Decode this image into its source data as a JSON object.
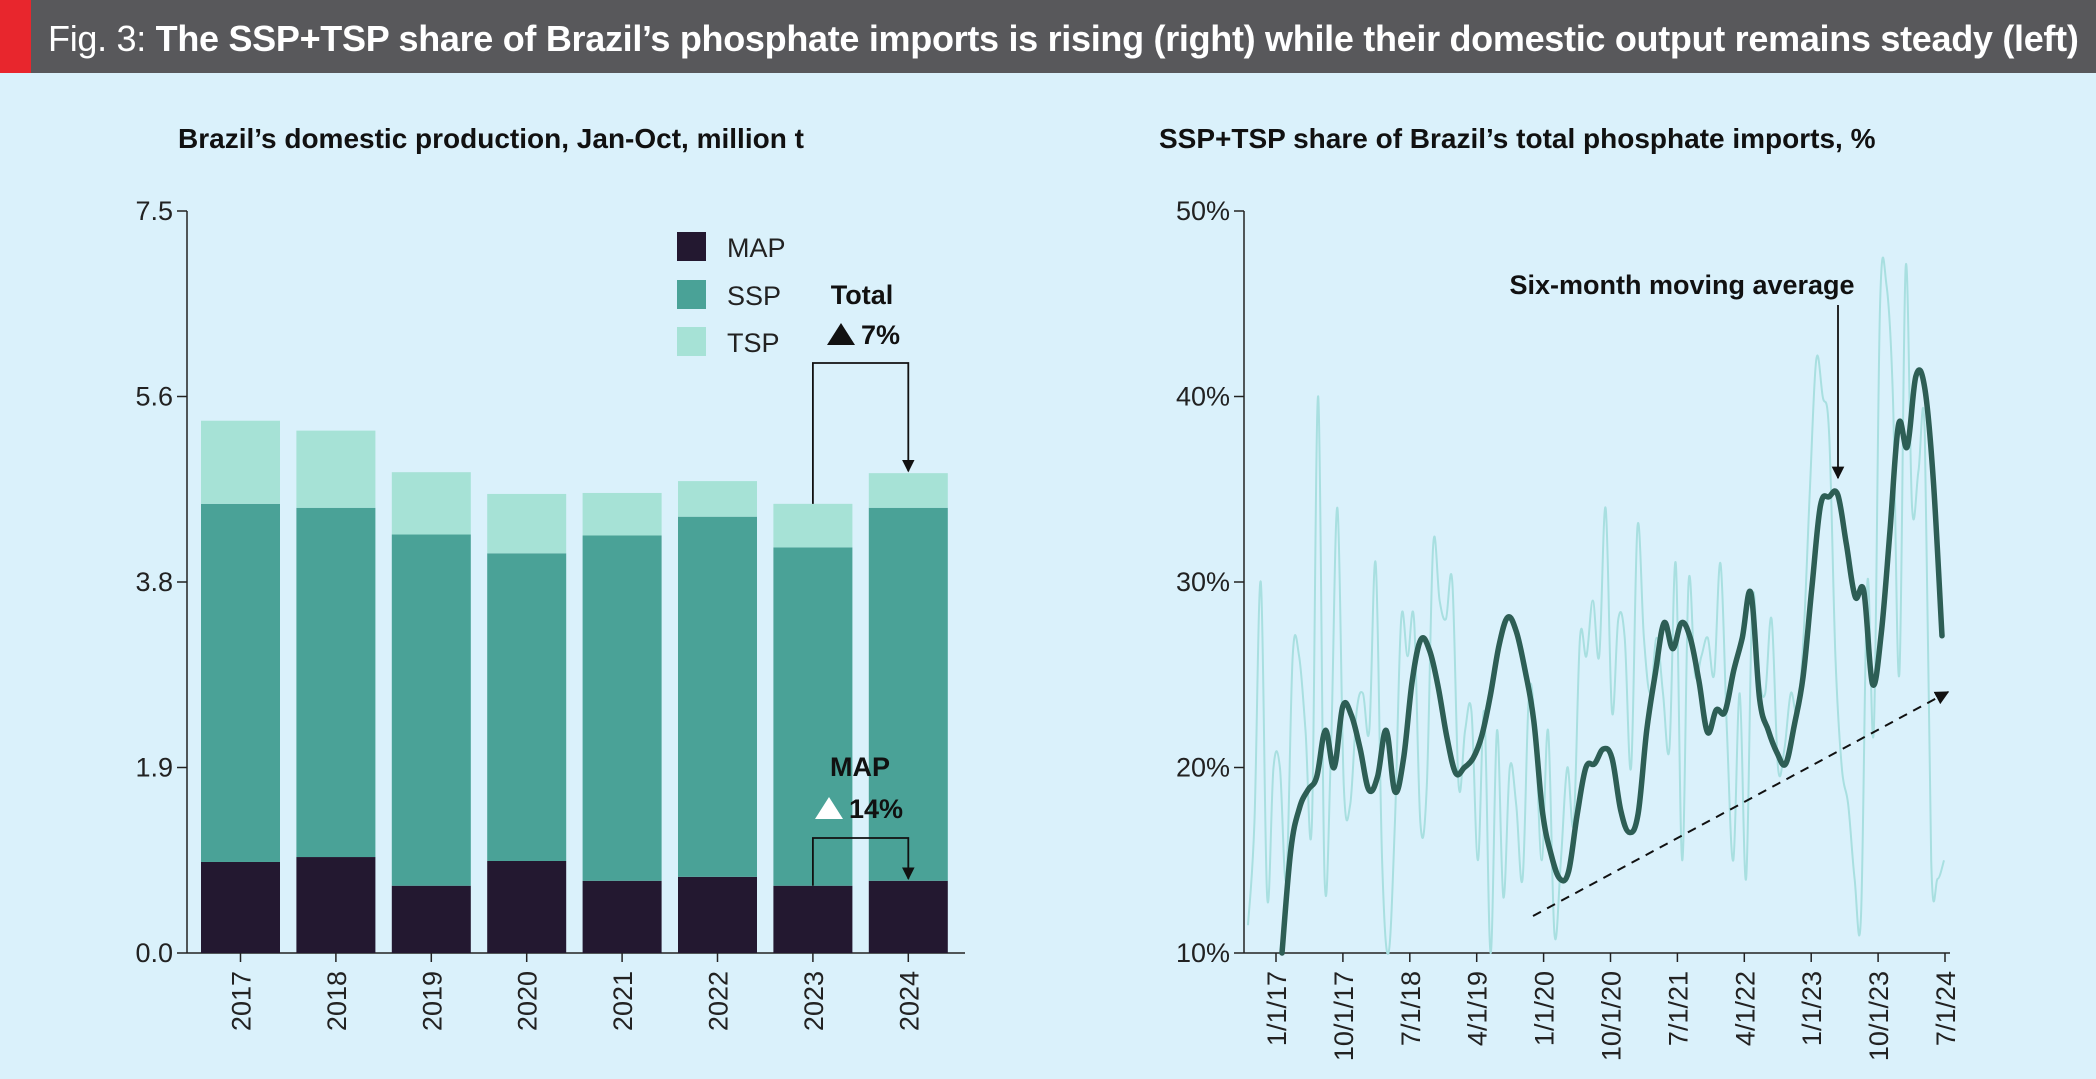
{
  "header": {
    "prefix": "Fig. 3:",
    "title": "The SSP+TSP share of Brazil’s phosphate imports is rising (right) while their domestic output remains steady (left)",
    "accent_color": "#e8262d",
    "background_color": "#58585b"
  },
  "chart_data": [
    {
      "type": "bar",
      "stacked": true,
      "title": "Brazil’s domestic production, Jan-Oct, million t",
      "categories": [
        "2017",
        "2018",
        "2019",
        "2020",
        "2021",
        "2022",
        "2023",
        "2024"
      ],
      "series": [
        {
          "name": "MAP",
          "color": "#231830",
          "values": [
            0.92,
            0.97,
            0.68,
            0.93,
            0.73,
            0.77,
            0.68,
            0.73
          ]
        },
        {
          "name": "SSP",
          "color": "#4aa297",
          "values": [
            3.62,
            3.53,
            3.55,
            3.11,
            3.49,
            3.64,
            3.42,
            3.77
          ]
        },
        {
          "name": "TSP",
          "color": "#a6e2d6",
          "values": [
            0.84,
            0.78,
            0.63,
            0.6,
            0.43,
            0.36,
            0.44,
            0.35
          ]
        }
      ],
      "yticks": [
        "0.0",
        "1.9",
        "3.8",
        "5.6",
        "7.5"
      ],
      "ylim": [
        0,
        7.5
      ],
      "legend_position": "top-center",
      "grid": false,
      "annotations": [
        {
          "label": "Total",
          "change": "7%",
          "marker": "▲"
        },
        {
          "label": "MAP",
          "change": "14%",
          "marker": "△"
        }
      ]
    },
    {
      "type": "line",
      "title": "SSP+TSP share of Brazil’s total phosphate imports, %",
      "xticks": [
        "1/1/17",
        "10/1/17",
        "7/1/18",
        "4/1/19",
        "1/1/20",
        "10/1/20",
        "7/1/21",
        "4/1/22",
        "1/1/23",
        "10/1/23",
        "7/1/24"
      ],
      "yticks": [
        "10%",
        "20%",
        "30%",
        "40%",
        "50%"
      ],
      "ylim": [
        10,
        50
      ],
      "grid": false,
      "series": [
        {
          "name": "monthly",
          "color": "#a8dfe0",
          "values": [
            11.5,
            17,
            30,
            13,
            20,
            20,
            14,
            26,
            26,
            22,
            17,
            40,
            14,
            21,
            34,
            19,
            18,
            23,
            24,
            22,
            31,
            15,
            10,
            17,
            28,
            26,
            28,
            17,
            19,
            32,
            29,
            28,
            30,
            19,
            22,
            23,
            15,
            23,
            10,
            22,
            13,
            20,
            18,
            14,
            24,
            22,
            15,
            22,
            11,
            15,
            20,
            17,
            27,
            26,
            29,
            26,
            34,
            23,
            28,
            27,
            20,
            33,
            27,
            24,
            27,
            24,
            21,
            31,
            15,
            30,
            25,
            26,
            27,
            25,
            31,
            22,
            15,
            24,
            14,
            29,
            25,
            24,
            28,
            20,
            21,
            24,
            23,
            27,
            35,
            42,
            40,
            38,
            26,
            20,
            18,
            14,
            12,
            30,
            22,
            45,
            46,
            40,
            25,
            47,
            34,
            36,
            38,
            15,
            14,
            15
          ]
        },
        {
          "name": "Six-month moving average",
          "color": "#2d5e55",
          "values": [
            8.0,
            15.5,
            17.8,
            18.8,
            19.5,
            22,
            20,
            23.3,
            22.8,
            21,
            18.8,
            19.5,
            22,
            18.7,
            20.5,
            24.7,
            26.9,
            26.3,
            24.3,
            21.6,
            19.7,
            20,
            20.5,
            21.7,
            23.9,
            26.6,
            28.1,
            27.3,
            25.2,
            22.5,
            17.6,
            15.3,
            14,
            14.4,
            17.5,
            20,
            20.2,
            21,
            20.5,
            17.7,
            16.5,
            17.5,
            22,
            25.1,
            27.8,
            26.4,
            27.8,
            27,
            24.7,
            21.9,
            23.1,
            23,
            25.2,
            27,
            29.4,
            23.7,
            22,
            20.8,
            20.2,
            22.3,
            24.9,
            29.6,
            34.1,
            34.6,
            34.7,
            32,
            29.2,
            29.5,
            24.5,
            27.2,
            32.7,
            38.5,
            37.3,
            41.1,
            40.5,
            35.5,
            27.1
          ]
        }
      ],
      "annotations": [
        {
          "label": "Six-month moving average"
        }
      ]
    }
  ]
}
